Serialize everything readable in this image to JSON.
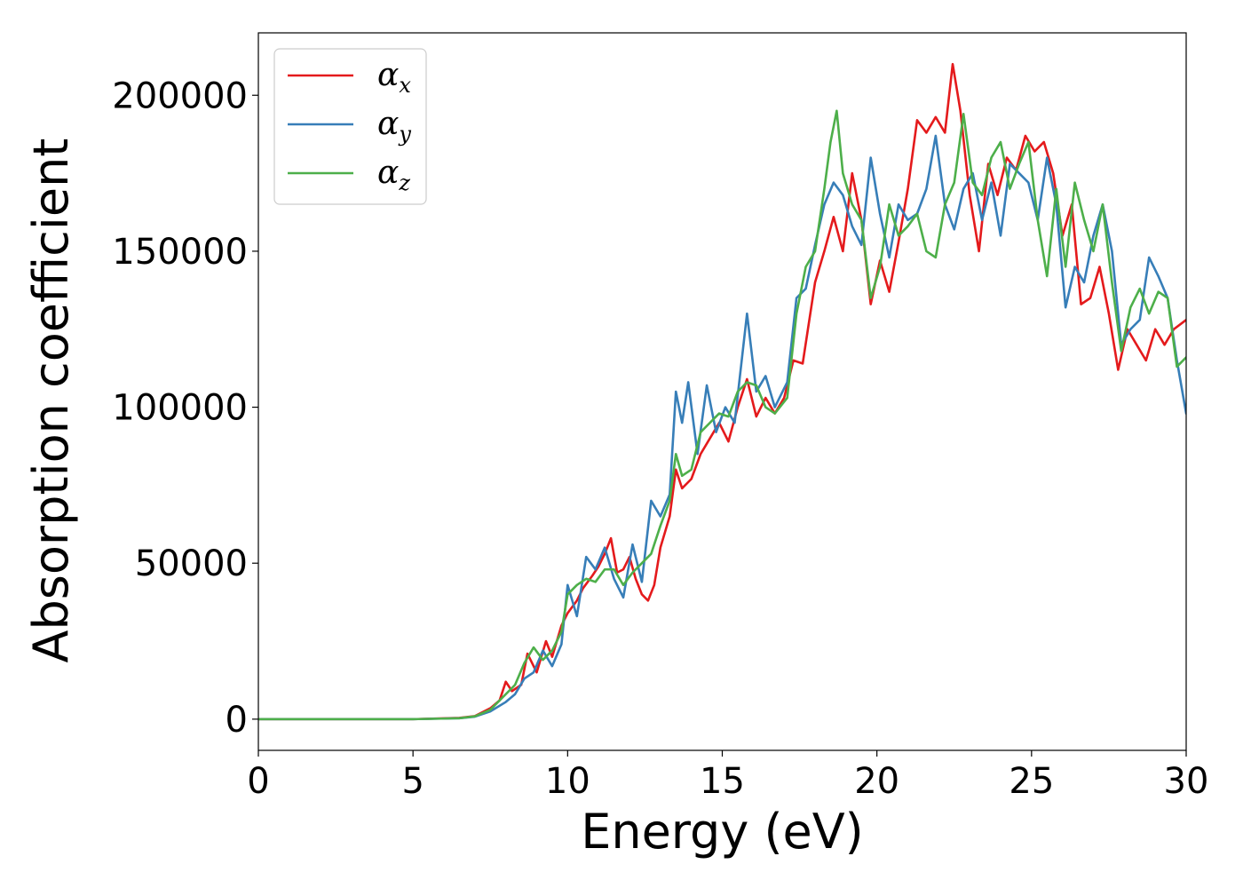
{
  "chart_data": {
    "type": "line",
    "title": "",
    "xlabel": "Energy (eV)",
    "ylabel": "Absorption coefficient",
    "xlim": [
      0,
      30
    ],
    "ylim": [
      -10000,
      220000
    ],
    "xticks": [
      0,
      5,
      10,
      15,
      20,
      25,
      30
    ],
    "xtick_labels": [
      "0",
      "5",
      "10",
      "15",
      "20",
      "25",
      "30"
    ],
    "yticks": [
      0,
      50000,
      100000,
      150000,
      200000
    ],
    "ytick_labels": [
      "0",
      "50000",
      "100000",
      "150000",
      "200000"
    ],
    "grid": false,
    "legend_position": "top-left",
    "series": [
      {
        "name": "α",
        "subscript": "x",
        "color": "#e41a1c",
        "points": [
          [
            0,
            0
          ],
          [
            5,
            0
          ],
          [
            6.5,
            400
          ],
          [
            7,
            1000
          ],
          [
            7.5,
            3500
          ],
          [
            7.8,
            6000
          ],
          [
            8,
            12000
          ],
          [
            8.2,
            9000
          ],
          [
            8.5,
            11000
          ],
          [
            8.7,
            21000
          ],
          [
            9,
            15000
          ],
          [
            9.3,
            25000
          ],
          [
            9.5,
            20000
          ],
          [
            9.8,
            30000
          ],
          [
            10,
            34000
          ],
          [
            10.3,
            38000
          ],
          [
            10.5,
            42000
          ],
          [
            10.8,
            46000
          ],
          [
            11,
            49000
          ],
          [
            11.2,
            53000
          ],
          [
            11.4,
            58000
          ],
          [
            11.6,
            47000
          ],
          [
            11.8,
            48000
          ],
          [
            12,
            52000
          ],
          [
            12.2,
            45000
          ],
          [
            12.4,
            40000
          ],
          [
            12.6,
            38000
          ],
          [
            12.8,
            43000
          ],
          [
            13,
            55000
          ],
          [
            13.3,
            65000
          ],
          [
            13.5,
            80000
          ],
          [
            13.7,
            74000
          ],
          [
            14,
            77000
          ],
          [
            14.3,
            85000
          ],
          [
            14.6,
            90000
          ],
          [
            14.9,
            95000
          ],
          [
            15.2,
            89000
          ],
          [
            15.5,
            100000
          ],
          [
            15.8,
            109000
          ],
          [
            16.1,
            97000
          ],
          [
            16.4,
            103000
          ],
          [
            16.7,
            98000
          ],
          [
            17,
            103000
          ],
          [
            17.3,
            115000
          ],
          [
            17.6,
            114000
          ],
          [
            18,
            140000
          ],
          [
            18.3,
            150000
          ],
          [
            18.6,
            161000
          ],
          [
            18.9,
            150000
          ],
          [
            19.2,
            175000
          ],
          [
            19.5,
            160000
          ],
          [
            19.8,
            133000
          ],
          [
            20.1,
            147000
          ],
          [
            20.4,
            137000
          ],
          [
            20.7,
            153000
          ],
          [
            21,
            170000
          ],
          [
            21.3,
            192000
          ],
          [
            21.6,
            188000
          ],
          [
            21.9,
            193000
          ],
          [
            22.2,
            188000
          ],
          [
            22.45,
            210000
          ],
          [
            22.7,
            195000
          ],
          [
            23,
            168000
          ],
          [
            23.3,
            150000
          ],
          [
            23.6,
            178000
          ],
          [
            23.9,
            168000
          ],
          [
            24.2,
            180000
          ],
          [
            24.5,
            176000
          ],
          [
            24.8,
            187000
          ],
          [
            25.1,
            182000
          ],
          [
            25.4,
            185000
          ],
          [
            25.7,
            175000
          ],
          [
            26,
            155000
          ],
          [
            26.3,
            165000
          ],
          [
            26.6,
            133000
          ],
          [
            26.9,
            135000
          ],
          [
            27.2,
            145000
          ],
          [
            27.5,
            130000
          ],
          [
            27.8,
            112000
          ],
          [
            28.1,
            125000
          ],
          [
            28.4,
            120000
          ],
          [
            28.7,
            115000
          ],
          [
            29,
            125000
          ],
          [
            29.3,
            120000
          ],
          [
            29.6,
            125000
          ],
          [
            30,
            128000
          ]
        ]
      },
      {
        "name": "α",
        "subscript": "y",
        "color": "#377eb8",
        "points": [
          [
            0,
            0
          ],
          [
            5,
            0
          ],
          [
            6.5,
            300
          ],
          [
            7,
            800
          ],
          [
            7.5,
            2500
          ],
          [
            8,
            5500
          ],
          [
            8.3,
            8000
          ],
          [
            8.6,
            13000
          ],
          [
            8.9,
            15000
          ],
          [
            9.2,
            22000
          ],
          [
            9.5,
            17000
          ],
          [
            9.8,
            24000
          ],
          [
            10,
            43000
          ],
          [
            10.3,
            33000
          ],
          [
            10.6,
            52000
          ],
          [
            10.9,
            48000
          ],
          [
            11.2,
            55000
          ],
          [
            11.5,
            45000
          ],
          [
            11.8,
            39000
          ],
          [
            12.1,
            56000
          ],
          [
            12.4,
            44000
          ],
          [
            12.7,
            70000
          ],
          [
            13,
            65000
          ],
          [
            13.3,
            72000
          ],
          [
            13.5,
            105000
          ],
          [
            13.7,
            95000
          ],
          [
            13.9,
            108000
          ],
          [
            14.2,
            85000
          ],
          [
            14.5,
            107000
          ],
          [
            14.8,
            92000
          ],
          [
            15.1,
            100000
          ],
          [
            15.4,
            95000
          ],
          [
            15.8,
            130000
          ],
          [
            16.1,
            105000
          ],
          [
            16.4,
            110000
          ],
          [
            16.7,
            100000
          ],
          [
            17.1,
            108000
          ],
          [
            17.4,
            135000
          ],
          [
            17.7,
            138000
          ],
          [
            18,
            152000
          ],
          [
            18.3,
            165000
          ],
          [
            18.6,
            172000
          ],
          [
            18.9,
            168000
          ],
          [
            19.2,
            158000
          ],
          [
            19.5,
            152000
          ],
          [
            19.8,
            180000
          ],
          [
            20.1,
            162000
          ],
          [
            20.4,
            148000
          ],
          [
            20.7,
            165000
          ],
          [
            21,
            160000
          ],
          [
            21.3,
            162000
          ],
          [
            21.6,
            170000
          ],
          [
            21.9,
            187000
          ],
          [
            22.2,
            165000
          ],
          [
            22.5,
            157000
          ],
          [
            22.8,
            170000
          ],
          [
            23.1,
            175000
          ],
          [
            23.4,
            160000
          ],
          [
            23.7,
            172000
          ],
          [
            24,
            155000
          ],
          [
            24.3,
            178000
          ],
          [
            24.6,
            175000
          ],
          [
            24.9,
            172000
          ],
          [
            25.2,
            160000
          ],
          [
            25.5,
            180000
          ],
          [
            25.8,
            165000
          ],
          [
            26.1,
            132000
          ],
          [
            26.4,
            145000
          ],
          [
            26.7,
            140000
          ],
          [
            27,
            155000
          ],
          [
            27.3,
            165000
          ],
          [
            27.6,
            150000
          ],
          [
            27.9,
            120000
          ],
          [
            28.2,
            125000
          ],
          [
            28.5,
            128000
          ],
          [
            28.8,
            148000
          ],
          [
            29.1,
            142000
          ],
          [
            29.4,
            135000
          ],
          [
            29.7,
            115000
          ],
          [
            30,
            98000
          ]
        ]
      },
      {
        "name": "α",
        "subscript": "z",
        "color": "#4daf4a",
        "points": [
          [
            0,
            0
          ],
          [
            5,
            0
          ],
          [
            6.5,
            300
          ],
          [
            7,
            900
          ],
          [
            7.5,
            3000
          ],
          [
            8,
            8000
          ],
          [
            8.3,
            11000
          ],
          [
            8.6,
            18000
          ],
          [
            8.9,
            23000
          ],
          [
            9.2,
            19000
          ],
          [
            9.5,
            22000
          ],
          [
            9.8,
            28000
          ],
          [
            10,
            40000
          ],
          [
            10.3,
            43000
          ],
          [
            10.6,
            45000
          ],
          [
            10.9,
            44000
          ],
          [
            11.2,
            48000
          ],
          [
            11.5,
            48000
          ],
          [
            11.8,
            43000
          ],
          [
            12.1,
            47000
          ],
          [
            12.4,
            50000
          ],
          [
            12.7,
            53000
          ],
          [
            13,
            62000
          ],
          [
            13.3,
            70000
          ],
          [
            13.5,
            85000
          ],
          [
            13.7,
            78000
          ],
          [
            14,
            80000
          ],
          [
            14.3,
            92000
          ],
          [
            14.6,
            95000
          ],
          [
            14.9,
            98000
          ],
          [
            15.2,
            97000
          ],
          [
            15.5,
            105000
          ],
          [
            15.8,
            108000
          ],
          [
            16.1,
            107000
          ],
          [
            16.4,
            100000
          ],
          [
            16.7,
            98000
          ],
          [
            17.1,
            103000
          ],
          [
            17.4,
            130000
          ],
          [
            17.7,
            145000
          ],
          [
            18,
            150000
          ],
          [
            18.3,
            170000
          ],
          [
            18.5,
            185000
          ],
          [
            18.7,
            195000
          ],
          [
            18.9,
            175000
          ],
          [
            19.2,
            165000
          ],
          [
            19.5,
            160000
          ],
          [
            19.8,
            135000
          ],
          [
            20.1,
            145000
          ],
          [
            20.4,
            165000
          ],
          [
            20.7,
            155000
          ],
          [
            21,
            158000
          ],
          [
            21.3,
            162000
          ],
          [
            21.6,
            150000
          ],
          [
            21.9,
            148000
          ],
          [
            22.2,
            165000
          ],
          [
            22.5,
            172000
          ],
          [
            22.8,
            194000
          ],
          [
            23.1,
            172000
          ],
          [
            23.4,
            168000
          ],
          [
            23.7,
            180000
          ],
          [
            24,
            185000
          ],
          [
            24.3,
            170000
          ],
          [
            24.6,
            178000
          ],
          [
            24.9,
            185000
          ],
          [
            25.2,
            160000
          ],
          [
            25.5,
            142000
          ],
          [
            25.8,
            170000
          ],
          [
            26.1,
            145000
          ],
          [
            26.4,
            172000
          ],
          [
            26.7,
            160000
          ],
          [
            27,
            150000
          ],
          [
            27.3,
            165000
          ],
          [
            27.6,
            140000
          ],
          [
            27.9,
            118000
          ],
          [
            28.2,
            132000
          ],
          [
            28.5,
            138000
          ],
          [
            28.8,
            130000
          ],
          [
            29.1,
            137000
          ],
          [
            29.4,
            135000
          ],
          [
            29.7,
            113000
          ],
          [
            30,
            116000
          ]
        ]
      }
    ]
  }
}
